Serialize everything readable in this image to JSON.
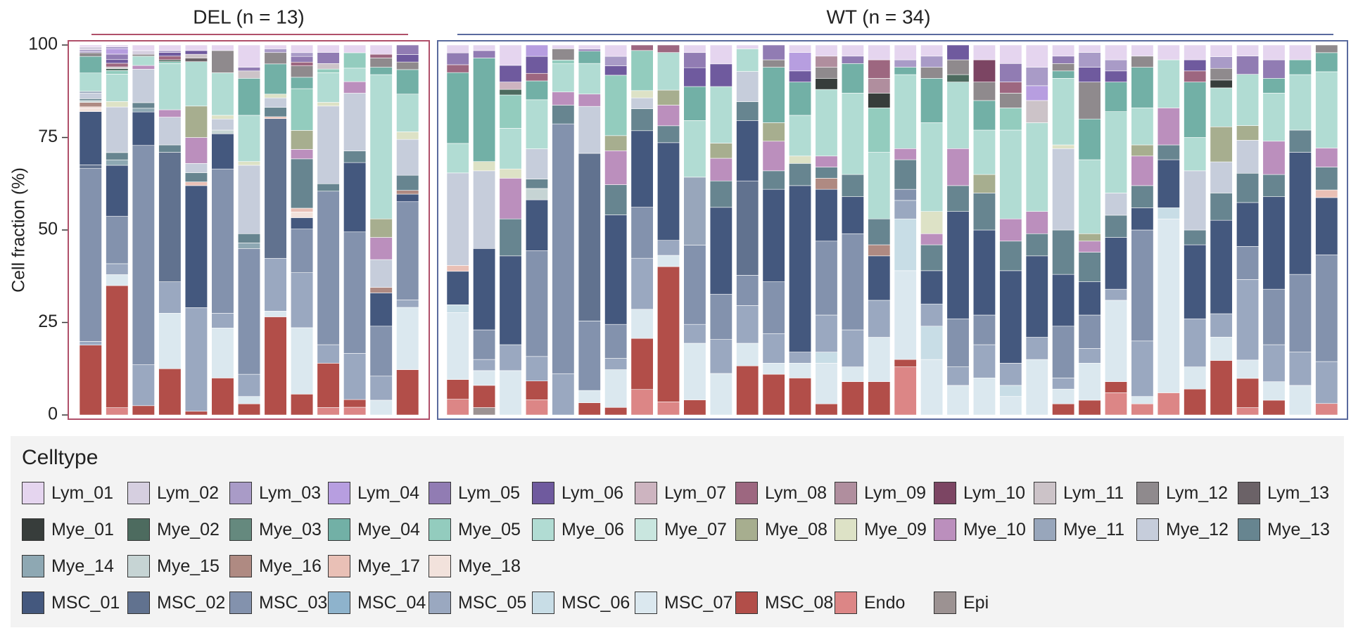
{
  "chart_data": {
    "type": "bar",
    "stacked": true,
    "ylabel": "Cell fraction (%)",
    "ylim": [
      0,
      100
    ],
    "yticks": [
      "0",
      "25",
      "50",
      "75",
      "100"
    ],
    "legend_title": "Celltype",
    "groups": [
      {
        "name": "DEL",
        "title": "DEL (n = 13)",
        "n_samples": 13,
        "color": "#b0506a"
      },
      {
        "name": "WT",
        "title": "WT (n = 34)",
        "n_samples": 34,
        "color": "#5a6a9e"
      }
    ],
    "celltypes": [
      {
        "name": "Lym_01",
        "color": "#e5d5ef"
      },
      {
        "name": "Lym_02",
        "color": "#d6cfe0"
      },
      {
        "name": "Lym_03",
        "color": "#a99bc7"
      },
      {
        "name": "Lym_04",
        "color": "#b79ee0"
      },
      {
        "name": "Lym_05",
        "color": "#917cb3"
      },
      {
        "name": "Lym_06",
        "color": "#6f5a9e"
      },
      {
        "name": "Lym_07",
        "color": "#cdb4c0"
      },
      {
        "name": "Lym_08",
        "color": "#9d6780"
      },
      {
        "name": "Lym_09",
        "color": "#b08e9e"
      },
      {
        "name": "Lym_10",
        "color": "#7c4563"
      },
      {
        "name": "Lym_11",
        "color": "#ccc3c8"
      },
      {
        "name": "Lym_12",
        "color": "#8f8a8d"
      },
      {
        "name": "Lym_13",
        "color": "#6b6267"
      },
      {
        "name": "Mye_01",
        "color": "#373d3b"
      },
      {
        "name": "Mye_02",
        "color": "#4d6b5f"
      },
      {
        "name": "Mye_03",
        "color": "#65897e"
      },
      {
        "name": "Mye_04",
        "color": "#72b0a6"
      },
      {
        "name": "Mye_05",
        "color": "#93ccbe"
      },
      {
        "name": "Mye_06",
        "color": "#b1dcd3"
      },
      {
        "name": "Mye_07",
        "color": "#c9e6df"
      },
      {
        "name": "Mye_08",
        "color": "#a7ae8f"
      },
      {
        "name": "Mye_09",
        "color": "#dde2c6"
      },
      {
        "name": "Mye_10",
        "color": "#bb8fbd"
      },
      {
        "name": "Mye_11",
        "color": "#98a6bb"
      },
      {
        "name": "Mye_12",
        "color": "#c6cddb"
      },
      {
        "name": "Mye_13",
        "color": "#678590"
      },
      {
        "name": "Mye_14",
        "color": "#8ea8b3"
      },
      {
        "name": "Mye_15",
        "color": "#c6d4d4"
      },
      {
        "name": "Mye_16",
        "color": "#af8a82"
      },
      {
        "name": "Mye_17",
        "color": "#e9c0b6"
      },
      {
        "name": "Mye_18",
        "color": "#f2e2dc"
      },
      {
        "name": "MSC_01",
        "color": "#44587e"
      },
      {
        "name": "MSC_02",
        "color": "#61728f"
      },
      {
        "name": "MSC_03",
        "color": "#8392ad"
      },
      {
        "name": "MSC_04",
        "color": "#8eb3cc"
      },
      {
        "name": "MSC_05",
        "color": "#9aa8c0"
      },
      {
        "name": "MSC_06",
        "color": "#c8dde6"
      },
      {
        "name": "MSC_07",
        "color": "#dbe8ef"
      },
      {
        "name": "MSC_08",
        "color": "#b24e49"
      },
      {
        "name": "Endo",
        "color": "#dc8686"
      },
      {
        "name": "Epi",
        "color": "#9c9292"
      }
    ],
    "samples": [
      {
        "group": "DEL",
        "values": {
          "Lym_01": 0.5,
          "Lym_02": 0.8,
          "Mye_11": 0.5,
          "Mye_12": 1.5,
          "Mye_13": 0.5,
          "Mye_15": 0.5,
          "Mye_16": 1.2,
          "Mye_17": 0.3,
          "Mye_18": 1,
          "Mye_06": 5,
          "Mye_04": 4.5,
          "MSC_08": 19,
          "MSC_05": 1,
          "MSC_03": 47,
          "MSC_02": 1,
          "MSC_01": 14.5,
          "Lym_12": 1,
          "Lym_03": 0.5,
          "Lym_05": 0.3
        }
      },
      {
        "group": "DEL",
        "values": {
          "Mye_13": 2,
          "Mye_14": 1.5,
          "Mye_12": 12.5,
          "Mye_09": 1.5,
          "Mye_06": 7.5,
          "Mye_05": 1,
          "Mye_02": 0.5,
          "MSC_08": 33.5,
          "MSC_07": 3,
          "MSC_05": 3,
          "MSC_03": 13,
          "MSC_01": 14,
          "Lym_11": 0.5,
          "Lym_08": 1,
          "Lym_06": 1,
          "Lym_05": 1.5,
          "Lym_04": 1.5,
          "Lym_03": 0.5,
          "Lym_01": 0.5,
          "Endo": 2
        }
      },
      {
        "group": "DEL",
        "values": {
          "Mye_13": 1.5,
          "Mye_14": 1,
          "Mye_12": 9,
          "Mye_10": 1,
          "Mye_06": 2.5,
          "MSC_08": 2.5,
          "MSC_05": 11,
          "MSC_03": 59,
          "MSC_01": 9,
          "Lym_02": 1,
          "Lym_01": 1.5,
          "Lym_12": 0.5
        }
      },
      {
        "group": "DEL",
        "values": {
          "Mye_13": 2,
          "Mye_12": 7.5,
          "Mye_10": 2,
          "Mye_06": 12.5,
          "Mye_05": 0.5,
          "Mye_02": 0.5,
          "MSC_08": 12.5,
          "MSC_07": 15,
          "MSC_05": 8.5,
          "MSC_02": 35,
          "Lym_08": 1,
          "Lym_06": 1,
          "Lym_03": 0.5,
          "Lym_01": 1.5
        }
      },
      {
        "group": "DEL",
        "values": {
          "Mye_17": 1,
          "Mye_13": 2.5,
          "Mye_10": 7,
          "Mye_08": 8.5,
          "Mye_06": 12,
          "MSC_08": 1,
          "MSC_05": 28,
          "MSC_01": 33,
          "Lym_11": 1,
          "Lym_06": 1,
          "Lym_01": 1.5,
          "Lym_13": 1,
          "Mye_12": 2.5
        }
      },
      {
        "group": "DEL",
        "values": {
          "Mye_12": 3,
          "Mye_09": 1,
          "Mye_06": 11.5,
          "MSC_08": 10,
          "MSC_07": 13.5,
          "MSC_05": 4,
          "MSC_03": 39,
          "MSC_01": 9.5,
          "Lym_12": 6,
          "Lym_01": 1.5,
          "Mye_15": 1
        }
      },
      {
        "group": "DEL",
        "values": {
          "Mye_13": 2.5,
          "Mye_12": 18.5,
          "Mye_09": 1,
          "Mye_06": 12.5,
          "Mye_04": 10,
          "MSC_08": 3,
          "MSC_07": 2,
          "MSC_05": 6,
          "MSC_03": 34,
          "Lym_11": 2,
          "Lym_01": 6,
          "Lym_05": 1,
          "Mye_14": 1.5
        }
      },
      {
        "group": "DEL",
        "values": {
          "Mye_17": 0.5,
          "Mye_13": 2.5,
          "Mye_12": 2.5,
          "Mye_09": 1,
          "Mye_04": 8,
          "MSC_08": 26,
          "MSC_07": 1.5,
          "MSC_05": 14,
          "MSC_02": 37,
          "Lym_12": 3,
          "Lym_03": 1,
          "Lym_01": 1
        }
      },
      {
        "group": "DEL",
        "values": {
          "Mye_18": 1.5,
          "Mye_17": 1,
          "Mye_13": 13,
          "Mye_10": 2.5,
          "Mye_08": 5,
          "Mye_05": 11,
          "Mye_04": 3,
          "MSC_08": 5.5,
          "MSC_07": 17.5,
          "MSC_05": 14.5,
          "MSC_03": 11.5,
          "MSC_01": 3,
          "Lym_08": 1,
          "Lym_05": 1.5,
          "Lym_03": 1,
          "Lym_12": 3,
          "Lym_01": 2
        }
      },
      {
        "group": "DEL",
        "values": {
          "Mye_13": 2,
          "Mye_12": 21,
          "Mye_09": 1,
          "Mye_06": 8,
          "Mye_05": 1,
          "MSC_08": 12,
          "MSC_05": 5,
          "MSC_03": 41.5,
          "Lym_05": 3,
          "Lym_01": 2,
          "Endo": 2,
          "Lym_11": 1.5
        }
      },
      {
        "group": "DEL",
        "values": {
          "Mye_13": 3,
          "Mye_12": 15,
          "Mye_10": 3,
          "Mye_06": 3.5,
          "Mye_05": 4,
          "MSC_08": 2,
          "MSC_05": 12,
          "MSC_03": 31.5,
          "MSC_01": 18,
          "Lym_01": 2,
          "Endo": 2
        }
      },
      {
        "group": "DEL",
        "values": {
          "Mye_16": 1.5,
          "Mye_12": 7.5,
          "Mye_10": 6,
          "Mye_08": 5,
          "Mye_06": 39,
          "Mye_04": 2,
          "MSC_07": 4,
          "MSC_05": 6.5,
          "MSC_03": 13.5,
          "MSC_01": 9,
          "Lym_08": 1,
          "Lym_01": 2.5,
          "Lym_12": 2.5
        }
      },
      {
        "group": "DEL",
        "values": {
          "Mye_16": 1,
          "Mye_13": 4,
          "Mye_12": 9.5,
          "Mye_09": 2,
          "Mye_06": 10,
          "Mye_04": 6.5,
          "MSC_08": 12,
          "MSC_07": 16.5,
          "MSC_05": 2,
          "MSC_03": 26,
          "MSC_01": 2,
          "Lym_06": 2,
          "Lym_05": 2.5,
          "Lym_12": 2
        }
      },
      {
        "group": "WT",
        "values": {
          "Mye_17": 1.5,
          "Mye_12": 23.5,
          "Mye_06": 7.5,
          "Mye_04": 18,
          "MSC_08": 5,
          "MSC_07": 17,
          "MSC_06": 2,
          "MSC_01": 8.5,
          "Lym_08": 2,
          "Lym_05": 3,
          "Lym_01": 2,
          "Endo": 4
        }
      },
      {
        "group": "WT",
        "values": {
          "Mye_12": 21,
          "Mye_09": 2.5,
          "Mye_04": 28,
          "MSC_08": 6,
          "MSC_07": 4,
          "MSC_05": 3,
          "MSC_03": 8,
          "MSC_01": 22,
          "Lym_05": 2,
          "Lym_01": 1.5,
          "Epi": 2
        }
      },
      {
        "group": "WT",
        "values": {
          "Mye_13": 10,
          "Mye_10": 11,
          "Mye_09": 2.5,
          "Mye_06": 11,
          "Mye_05": 9,
          "Mye_02": 1.5,
          "MSC_07": 12,
          "MSC_05": 7,
          "MSC_01": 24,
          "Lym_06": 4.5,
          "Lym_07": 2,
          "Lym_01": 5.5
        }
      },
      {
        "group": "WT",
        "values": {
          "Mye_15": 3,
          "Mye_13": 2.5,
          "Mye_12": 8,
          "Mye_06": 13,
          "Mye_04": 5,
          "MSC_08": 5,
          "MSC_05": 6.5,
          "MSC_03": 28,
          "MSC_01": 13.5,
          "Lym_08": 2,
          "Lym_06": 4.5,
          "Lym_04": 3,
          "Endo": 4
        }
      },
      {
        "group": "WT",
        "values": {
          "Mye_13": 5,
          "Mye_10": 3.5,
          "Mye_06": 7.5,
          "Mye_05": 1,
          "MSC_05": 11,
          "MSC_03": 66.5,
          "Lym_12": 3,
          "Lym_01": 1
        }
      },
      {
        "group": "WT",
        "values": {
          "Mye_12": 11.5,
          "Mye_10": 3,
          "Mye_06": 7.5,
          "Mye_04": 3,
          "MSC_08": 3,
          "MSC_07": 3,
          "MSC_03": 17,
          "MSC_02": 41,
          "Lym_05": 0.5,
          "Lym_01": 1
        }
      },
      {
        "group": "WT",
        "values": {
          "Mye_13": 8,
          "Mye_10": 9,
          "Mye_08": 4,
          "Mye_05": 16,
          "MSC_08": 2,
          "MSC_07": 10,
          "MSC_05": 3,
          "MSC_03": 9,
          "MSC_01": 29,
          "Lym_06": 2.5,
          "Lym_03": 2.5,
          "Lym_01": 3
        }
      },
      {
        "group": "WT",
        "values": {
          "Mye_13": 6,
          "Mye_12": 3,
          "Mye_09": 2,
          "Mye_05": 11,
          "MSC_08": 14,
          "MSC_07": 8,
          "MSC_05": 14,
          "MSC_03": 14,
          "MSC_01": 21,
          "Lym_08": 1.5,
          "Endo": 7
        }
      },
      {
        "group": "WT",
        "values": {
          "Mye_13": 4.5,
          "Mye_10": 5.5,
          "Mye_08": 4,
          "Mye_06": 10,
          "MSC_08": 36,
          "MSC_07": 3,
          "MSC_05": 4,
          "MSC_01": 26,
          "Lym_08": 2,
          "Endo": 3.5
        }
      },
      {
        "group": "WT",
        "values": {
          "Mye_11": 18,
          "Mye_04": 9,
          "Mye_06": 15,
          "MSC_08": 4,
          "MSC_07": 15,
          "MSC_05": 5,
          "MSC_03": 21,
          "Lym_05": 4,
          "Lym_06": 5,
          "Lym_01": 2
        }
      },
      {
        "group": "WT",
        "values": {
          "Mye_13": 7,
          "Mye_10": 6,
          "Mye_08": 4,
          "Mye_06": 15,
          "MSC_07": 11,
          "MSC_05": 9,
          "MSC_03": 12,
          "MSC_01": 23,
          "Lym_06": 6,
          "Lym_01": 5
        }
      },
      {
        "group": "WT",
        "values": {
          "Mye_13": 5,
          "Mye_12": 8,
          "Mye_06": 6,
          "MSC_08": 13,
          "MSC_07": 6,
          "MSC_05": 10,
          "MSC_03": 8,
          "MSC_02": 25,
          "MSC_01": 16,
          "Lym_01": 1
        }
      },
      {
        "group": "WT",
        "values": {
          "Mye_13": 5,
          "Mye_10": 8,
          "Mye_08": 5,
          "Mye_04": 15,
          "MSC_08": 11,
          "MSC_07": 3,
          "MSC_05": 8,
          "MSC_03": 14,
          "MSC_01": 25,
          "Lym_05": 4,
          "Lym_12": 2
        }
      },
      {
        "group": "WT",
        "values": {
          "Mye_13": 6,
          "Mye_06": 11,
          "Mye_09": 2,
          "Mye_04": 9,
          "MSC_08": 10,
          "MSC_07": 4,
          "MSC_05": 3,
          "MSC_01": 45,
          "Lym_04": 5,
          "Lym_06": 3,
          "Lym_01": 2
        }
      },
      {
        "group": "WT",
        "values": {
          "Mye_16": 3,
          "Mye_13": 3,
          "Mye_10": 3,
          "Mye_06": 18,
          "Mye_01": 3,
          "MSC_08": 3,
          "MSC_07": 11,
          "MSC_06": 3,
          "MSC_05": 10,
          "MSC_03": 20,
          "MSC_01": 14,
          "Lym_12": 3,
          "Lym_09": 3,
          "Lym_01": 3
        }
      },
      {
        "group": "WT",
        "values": {
          "Mye_13": 6,
          "Mye_06": 22,
          "Mye_04": 8,
          "MSC_08": 9,
          "MSC_07": 4,
          "MSC_05": 10,
          "MSC_03": 26,
          "MSC_01": 10,
          "Lym_05": 2,
          "Lym_01": 3
        }
      },
      {
        "group": "WT",
        "values": {
          "Mye_16": 3,
          "Mye_13": 7,
          "Mye_06": 18,
          "Mye_05": 12,
          "Mye_01": 4,
          "MSC_08": 9,
          "MSC_07": 12,
          "MSC_05": 10,
          "MSC_01": 12,
          "Lym_08": 5,
          "Lym_01": 4,
          "Lym_09": 4
        }
      },
      {
        "group": "WT",
        "values": {
          "Mye_13": 8,
          "Mye_10": 3,
          "Mye_06": 20,
          "Mye_04": 2,
          "MSC_08": 2,
          "MSC_07": 24,
          "MSC_06": 14,
          "MSC_05": 5,
          "MSC_03": 3,
          "Lym_03": 2,
          "Endo": 13,
          "Lym_01": 4
        }
      },
      {
        "group": "WT",
        "values": {
          "Mye_09": 6,
          "Mye_10": 3,
          "Mye_13": 7,
          "Mye_06": 24,
          "Mye_04": 12,
          "MSC_07": 15,
          "MSC_06": 9,
          "MSC_05": 6,
          "MSC_01": 9,
          "Lym_03": 3,
          "Lym_01": 3,
          "Lym_12": 3
        }
      },
      {
        "group": "WT",
        "values": {
          "Mye_13": 7,
          "Mye_10": 10,
          "Mye_06": 18,
          "Mye_02": 2,
          "MSC_07": 8,
          "MSC_05": 5,
          "MSC_03": 13,
          "MSC_01": 29,
          "Lym_06": 4,
          "Lym_12": 4
        }
      },
      {
        "group": "WT",
        "values": {
          "Mye_13": 10,
          "Mye_04": 8,
          "Mye_06": 12,
          "Mye_08": 5,
          "MSC_07": 10,
          "MSC_05": 9,
          "MSC_03": 8,
          "MSC_01": 23,
          "Lym_10": 6,
          "Lym_12": 5,
          "Lym_01": 4
        }
      },
      {
        "group": "WT",
        "values": {
          "Mye_13": 8,
          "Mye_10": 6,
          "Mye_06": 24,
          "Mye_05": 6,
          "MSC_07": 5,
          "MSC_06": 3,
          "MSC_05": 6,
          "MSC_01": 25,
          "Lym_08": 3,
          "Lym_05": 5,
          "Lym_12": 4,
          "Lym_01": 5
        }
      },
      {
        "group": "WT",
        "values": {
          "Mye_13": 6,
          "Mye_10": 6,
          "Mye_06": 24,
          "MSC_07": 15,
          "MSC_05": 6,
          "MSC_01": 22,
          "Lym_03": 5,
          "Lym_01": 6,
          "Lym_11": 6,
          "Lym_04": 4
        }
      },
      {
        "group": "WT",
        "values": {
          "Mye_13": 12,
          "Mye_12": 22,
          "Mye_09": 1,
          "Mye_06": 18,
          "Mye_04": 2,
          "MSC_08": 3,
          "MSC_07": 4,
          "MSC_05": 3,
          "MSC_03": 14,
          "MSC_01": 14,
          "Lym_05": 2,
          "Lym_01": 3,
          "Lym_12": 2
        }
      },
      {
        "group": "WT",
        "values": {
          "Mye_13": 8,
          "Mye_10": 3,
          "Mye_08": 2,
          "Mye_06": 20,
          "Mye_04": 11,
          "MSC_08": 4,
          "MSC_07": 10,
          "MSC_05": 4,
          "MSC_03": 9,
          "MSC_01": 9,
          "Lym_06": 4,
          "Lym_03": 4,
          "Lym_12": 10,
          "Lym_01": 2
        }
      },
      {
        "group": "WT",
        "values": {
          "Mye_13": 6,
          "Mye_12": 6,
          "Mye_06": 22,
          "Mye_04": 8,
          "MSC_08": 3,
          "MSC_07": 22,
          "MSC_05": 3,
          "MSC_01": 14,
          "Lym_06": 3,
          "Lym_03": 3,
          "Lym_01": 4,
          "Endo": 6
        }
      },
      {
        "group": "WT",
        "values": {
          "Mye_13": 6,
          "Mye_10": 8,
          "Mye_08": 3,
          "Mye_06": 10,
          "Mye_04": 11,
          "MSC_07": 2,
          "MSC_05": 15,
          "MSC_03": 30,
          "MSC_01": 6,
          "Lym_01": 3,
          "Lym_12": 3,
          "Endo": 3
        }
      },
      {
        "group": "WT",
        "values": {
          "Mye_13": 4,
          "Mye_10": 10,
          "Mye_06": 13,
          "MSC_07": 47,
          "MSC_06": 3,
          "MSC_01": 13,
          "Lym_01": 4,
          "Endo": 6
        }
      },
      {
        "group": "WT",
        "values": {
          "Mye_13": 4,
          "Mye_12": 16,
          "Mye_06": 9,
          "Mye_04": 15,
          "MSC_08": 7,
          "MSC_07": 6,
          "MSC_05": 13,
          "MSC_01": 20,
          "Lym_01": 4,
          "Lym_06": 3,
          "Lym_08": 3
        }
      },
      {
        "group": "WT",
        "values": {
          "Mye_13": 7,
          "Mye_12": 8,
          "Mye_08": 9,
          "Mye_06": 10,
          "Mye_01": 2,
          "MSC_08": 14,
          "MSC_07": 6,
          "MSC_05": 6,
          "MSC_01": 24,
          "Lym_03": 3,
          "Lym_12": 3,
          "Lym_01": 3
        }
      },
      {
        "group": "WT",
        "values": {
          "Mye_13": 8,
          "Mye_12": 9,
          "Mye_08": 4,
          "Mye_06": 14,
          "MSC_08": 8,
          "MSC_07": 5,
          "MSC_05": 22,
          "MSC_03": 9,
          "MSC_01": 12,
          "Lym_05": 5,
          "Lym_01": 3,
          "Endo": 2
        }
      },
      {
        "group": "WT",
        "values": {
          "Mye_13": 6,
          "Mye_10": 9,
          "Mye_06": 13,
          "Mye_04": 4,
          "MSC_08": 4,
          "MSC_07": 5,
          "MSC_05": 10,
          "MSC_03": 15,
          "MSC_01": 25,
          "Lym_05": 5,
          "Lym_01": 4
        }
      },
      {
        "group": "WT",
        "values": {
          "Mye_13": 6,
          "Mye_06": 15,
          "Mye_04": 4,
          "MSC_07": 8,
          "MSC_05": 9,
          "MSC_03": 21,
          "MSC_01": 33,
          "Lym_01": 4
        }
      },
      {
        "group": "WT",
        "values": {
          "Mye_17": 2,
          "Mye_13": 6,
          "Mye_10": 5,
          "Mye_06": 20,
          "Mye_04": 5,
          "MSC_05": 11,
          "MSC_03": 28,
          "MSC_01": 15,
          "Lym_12": 2,
          "Endo": 3
        }
      }
    ]
  }
}
